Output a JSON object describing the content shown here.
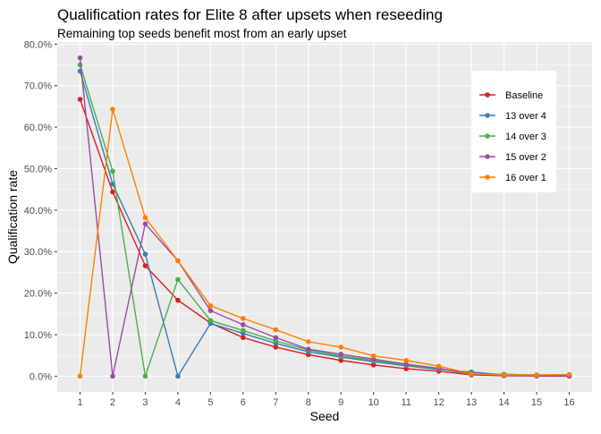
{
  "chart_data": {
    "type": "line",
    "title": "Qualification rates for Elite 8 after upsets when reseeding",
    "subtitle": "Remaining top seeds benefit most from an early upset",
    "xlabel": "Seed",
    "ylabel": "Qualification rate",
    "x": [
      1,
      2,
      3,
      4,
      5,
      6,
      7,
      8,
      9,
      10,
      11,
      12,
      13,
      14,
      15,
      16
    ],
    "x_tick_labels": [
      "1",
      "2",
      "3",
      "4",
      "5",
      "6",
      "7",
      "8",
      "9",
      "10",
      "11",
      "12",
      "13",
      "14",
      "15",
      "16"
    ],
    "xlim": [
      0.3,
      16.7
    ],
    "ylim": [
      -0.038,
      0.805
    ],
    "y_ticks": [
      0,
      0.1,
      0.2,
      0.3,
      0.4,
      0.5,
      0.6,
      0.7,
      0.8
    ],
    "y_tick_labels": [
      "0.0%",
      "10.0%",
      "20.0%",
      "30.0%",
      "40.0%",
      "50.0%",
      "60.0%",
      "70.0%",
      "80.0%"
    ],
    "grid": true,
    "legend_position": "right-inside",
    "series": [
      {
        "name": "Baseline",
        "color": "#e41a1c",
        "values": [
          0.667,
          0.444,
          0.266,
          0.183,
          0.128,
          0.093,
          0.07,
          0.052,
          0.038,
          0.027,
          0.018,
          0.012,
          0.003,
          0.001,
          0.0005,
          0.0
        ]
      },
      {
        "name": "13 over 4",
        "color": "#377eb8",
        "values": [
          0.735,
          0.463,
          0.294,
          0.0,
          0.127,
          0.103,
          0.079,
          0.059,
          0.046,
          0.035,
          0.025,
          0.016,
          0.01,
          0.003,
          0.003,
          0.001
        ]
      },
      {
        "name": "14 over 3",
        "color": "#4daf4a",
        "values": [
          0.75,
          0.494,
          0.0,
          0.233,
          0.134,
          0.11,
          0.085,
          0.063,
          0.049,
          0.038,
          0.027,
          0.018,
          0.004,
          0.005,
          0.002,
          0.001
        ]
      },
      {
        "name": "15 over 2",
        "color": "#984ea3",
        "values": [
          0.767,
          0.0,
          0.367,
          0.278,
          0.158,
          0.124,
          0.093,
          0.065,
          0.053,
          0.041,
          0.029,
          0.019,
          0.005,
          0.002,
          0.001,
          0.001
        ]
      },
      {
        "name": "16 over 1",
        "color": "#ff7f00",
        "values": [
          0.0,
          0.643,
          0.382,
          0.278,
          0.17,
          0.139,
          0.112,
          0.083,
          0.07,
          0.049,
          0.038,
          0.024,
          0.006,
          0.003,
          0.003,
          0.004
        ]
      }
    ]
  }
}
